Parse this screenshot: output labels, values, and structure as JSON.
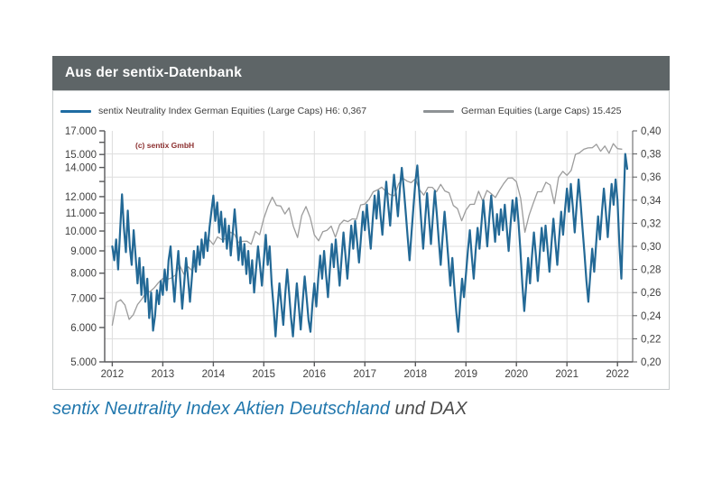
{
  "header": {
    "title": "Aus der sentix-Datenbank"
  },
  "legend": [
    {
      "label": "sentix Neutrality Index German Equities (Large Caps) H6: 0,367",
      "color": "#1e6ca3"
    },
    {
      "label": "German Equities (Large Caps) 15.425",
      "color": "#8e9295"
    }
  ],
  "copyright": "(c) sentix GmbH",
  "caption": {
    "part1": "sentix Neutrality Index Aktien Deutschland",
    "part2": "und DAX"
  },
  "colors": {
    "header_bg": "#5e6567",
    "box_border": "#c8cbcc",
    "grid": "#dddddd",
    "spine": "#58595b",
    "tick_label": "#3f3f3f",
    "blue_line": "#236996",
    "gray_line": "#9c9c9c",
    "copyright_red": "#8c2f2f",
    "caption_blue": "#2177ad",
    "caption_gray": "#4c4c4c"
  },
  "chart_data": {
    "type": "line",
    "title": "Aus der sentix-Datenbank",
    "grid": true,
    "legend_position": "top",
    "x_axis": {
      "min": 2011.85,
      "max": 2022.3,
      "ticks": [
        2012,
        2013,
        2014,
        2015,
        2016,
        2017,
        2018,
        2019,
        2020,
        2021,
        2022
      ]
    },
    "y_left": {
      "scale": "log",
      "min": 5000,
      "max": 17000,
      "tick_values": [
        5000,
        6000,
        7000,
        8000,
        9000,
        10000,
        11000,
        12000,
        13000,
        14000,
        15000,
        16000,
        17000
      ],
      "unlabeled": [
        13000,
        16000
      ],
      "tick_labels": [
        "5.000",
        "6.000",
        "7.000",
        "8.000",
        "9.000",
        "10.000",
        "11.000",
        "12.000",
        "14.000",
        "15.000",
        "17.000"
      ]
    },
    "y_right": {
      "scale": "linear",
      "min": 0.2,
      "max": 0.4,
      "step": 0.02,
      "tick_labels": [
        "0,20",
        "0,22",
        "0,24",
        "0,26",
        "0,28",
        "0,30",
        "0,32",
        "0,34",
        "0,36",
        "0,38",
        "0,40"
      ]
    },
    "series": [
      {
        "name": "German Equities (Large Caps)",
        "current_value_label": "15.425",
        "axis": "left",
        "color": "#9c9c9c",
        "width": 1.3,
        "x_start": 2012.0,
        "x_step": 0.0833333,
        "values": [
          6075,
          6856,
          6946,
          6761,
          6264,
          6416,
          6772,
          6971,
          7216,
          7260,
          7405,
          7612,
          7776,
          7741,
          7795,
          7914,
          8349,
          7959,
          8276,
          8103,
          8594,
          9034,
          9405,
          9552,
          9306,
          9692,
          9556,
          9603,
          9943,
          9833,
          9407,
          9470,
          9474,
          9327,
          9981,
          9806,
          10694,
          11402,
          11966,
          11454,
          11414,
          10945,
          11309,
          10259,
          9660,
          10850,
          11382,
          10743,
          9798,
          9495,
          9966,
          10039,
          10263,
          9680,
          10338,
          10593,
          10511,
          10665,
          10640,
          11481,
          11535,
          11834,
          12313,
          12438,
          12615,
          12325,
          12118,
          12056,
          12829,
          13230,
          13024,
          12918,
          13189,
          12436,
          12097,
          12612,
          12604,
          12306,
          12806,
          12364,
          12247,
          11447,
          11257,
          10559,
          11173,
          11516,
          11526,
          12344,
          11727,
          12399,
          12189,
          11939,
          12428,
          12867,
          13236,
          13249,
          12982,
          11890,
          9936,
          10862,
          11587,
          12311,
          12313,
          12945,
          12761,
          11556,
          13291,
          13719,
          13433,
          13786,
          15008,
          15136,
          15421,
          15531,
          15544,
          15835,
          15261,
          15689,
          15100,
          15885,
          15471,
          15425
        ]
      },
      {
        "name": "sentix Neutrality Index German Equities (Large Caps)",
        "current_value_label": "H6: 0,367",
        "axis": "right",
        "color": "#236996",
        "width": 2.2,
        "x_start": 2012.0,
        "x_step": 0.0384615,
        "values": [
          0.3,
          0.288,
          0.306,
          0.28,
          0.312,
          0.345,
          0.316,
          0.295,
          0.331,
          0.3,
          0.284,
          0.314,
          0.292,
          0.268,
          0.29,
          0.258,
          0.282,
          0.252,
          0.272,
          0.238,
          0.26,
          0.227,
          0.24,
          0.262,
          0.25,
          0.27,
          0.258,
          0.28,
          0.262,
          0.288,
          0.3,
          0.274,
          0.252,
          0.276,
          0.296,
          0.27,
          0.246,
          0.268,
          0.29,
          0.272,
          0.252,
          0.274,
          0.296,
          0.278,
          0.3,
          0.284,
          0.306,
          0.29,
          0.312,
          0.296,
          0.316,
          0.33,
          0.344,
          0.322,
          0.338,
          0.312,
          0.33,
          0.304,
          0.324,
          0.298,
          0.318,
          0.292,
          0.312,
          0.332,
          0.31,
          0.288,
          0.308,
          0.284,
          0.302,
          0.276,
          0.296,
          0.268,
          0.288,
          0.26,
          0.28,
          0.3,
          0.284,
          0.266,
          0.288,
          0.31,
          0.284,
          0.3,
          0.268,
          0.248,
          0.222,
          0.246,
          0.268,
          0.25,
          0.232,
          0.258,
          0.28,
          0.26,
          0.238,
          0.222,
          0.246,
          0.268,
          0.248,
          0.228,
          0.252,
          0.274,
          0.256,
          0.236,
          0.226,
          0.25,
          0.268,
          0.248,
          0.272,
          0.292,
          0.272,
          0.296,
          0.276,
          0.256,
          0.28,
          0.302,
          0.282,
          0.306,
          0.286,
          0.266,
          0.29,
          0.312,
          0.292,
          0.272,
          0.296,
          0.318,
          0.298,
          0.322,
          0.304,
          0.286,
          0.308,
          0.33,
          0.314,
          0.336,
          0.316,
          0.298,
          0.322,
          0.344,
          0.324,
          0.348,
          0.328,
          0.31,
          0.334,
          0.356,
          0.336,
          0.318,
          0.342,
          0.362,
          0.344,
          0.326,
          0.35,
          0.368,
          0.35,
          0.33,
          0.308,
          0.288,
          0.312,
          0.334,
          0.356,
          0.37,
          0.346,
          0.322,
          0.298,
          0.322,
          0.346,
          0.324,
          0.302,
          0.326,
          0.348,
          0.328,
          0.306,
          0.284,
          0.308,
          0.33,
          0.31,
          0.288,
          0.266,
          0.29,
          0.266,
          0.244,
          0.226,
          0.25,
          0.272,
          0.256,
          0.276,
          0.296,
          0.314,
          0.292,
          0.272,
          0.296,
          0.316,
          0.298,
          0.32,
          0.34,
          0.32,
          0.3,
          0.324,
          0.344,
          0.324,
          0.304,
          0.328,
          0.31,
          0.332,
          0.314,
          0.336,
          0.316,
          0.296,
          0.32,
          0.34,
          0.322,
          0.342,
          0.322,
          0.298,
          0.268,
          0.244,
          0.266,
          0.29,
          0.268,
          0.292,
          0.312,
          0.292,
          0.27,
          0.294,
          0.316,
          0.296,
          0.318,
          0.298,
          0.278,
          0.302,
          0.324,
          0.304,
          0.284,
          0.308,
          0.33,
          0.31,
          0.332,
          0.35,
          0.33,
          0.354,
          0.334,
          0.312,
          0.336,
          0.358,
          0.338,
          0.316,
          0.294,
          0.27,
          0.252,
          0.276,
          0.298,
          0.278,
          0.302,
          0.326,
          0.306,
          0.33,
          0.35,
          0.33,
          0.308,
          0.332,
          0.354,
          0.336,
          0.358,
          0.34,
          0.3,
          0.272,
          0.33,
          0.38,
          0.367
        ]
      }
    ]
  }
}
